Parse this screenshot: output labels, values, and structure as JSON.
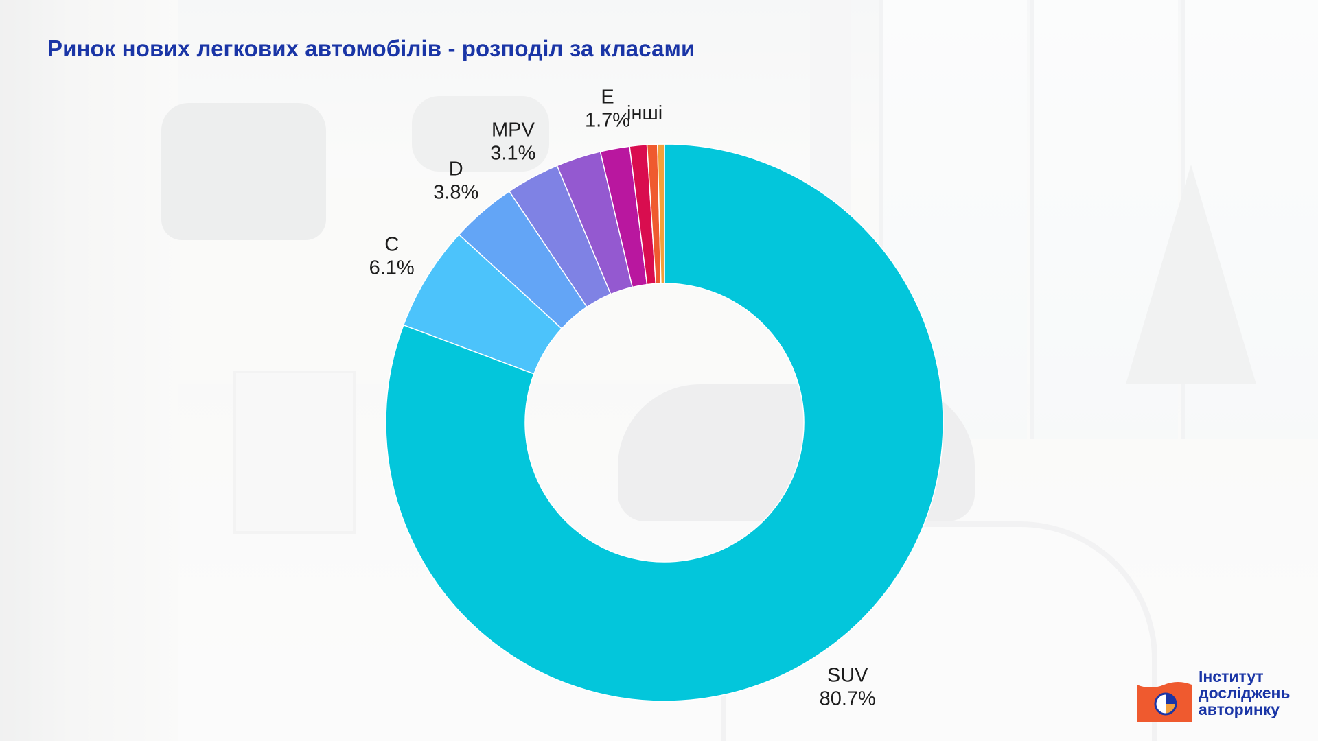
{
  "title": "Ринок нових легкових автомобілів - розподіл за класами",
  "chart_data": {
    "type": "pie",
    "variant": "donut",
    "title": "Ринок нових легкових автомобілів - розподіл за класами",
    "slices": [
      {
        "label": "SUV",
        "value": 80.7,
        "value_label": "80.7%",
        "color": "#03c6db"
      },
      {
        "label": "C",
        "value": 6.1,
        "value_label": "6.1%",
        "color": "#4cc3fb"
      },
      {
        "label": "D",
        "value": 3.8,
        "value_label": "3.8%",
        "color": "#63a5f6"
      },
      {
        "label": "MPV",
        "value": 3.1,
        "value_label": "3.1%",
        "color": "#7f82e4"
      },
      {
        "label": "",
        "value": 2.6,
        "value_label": "",
        "color": "#9459d0"
      },
      {
        "label": "E",
        "value": 1.7,
        "value_label": "1.7%",
        "color": "#b9179f"
      },
      {
        "label": "інші",
        "value": 1.0,
        "value_label": "",
        "color": "#d90d4f"
      },
      {
        "label": "",
        "value": 0.6,
        "value_label": "",
        "color": "#ef5a2f"
      },
      {
        "label": "",
        "value": 0.4,
        "value_label": "",
        "color": "#f3a03b"
      }
    ]
  },
  "logo": {
    "line1": "Інститут",
    "line2": "досліджень",
    "line3": "авторинку",
    "colors": {
      "flag": "#ef5a2f",
      "text": "#1a35a6"
    }
  }
}
